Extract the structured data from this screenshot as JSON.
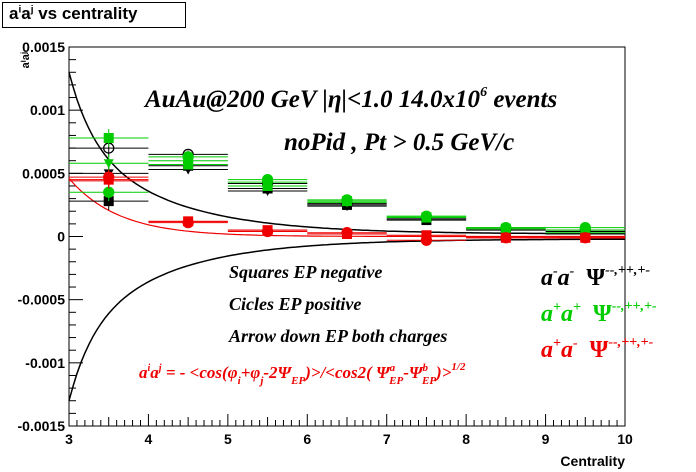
{
  "chart_data": {
    "type": "scatter",
    "title": {
      "base": "a",
      "sup1": "i",
      "mid": "a",
      "sup2": "j",
      "rest": " vs centrality"
    },
    "xlabel": "Centrality",
    "ylabel": "aⁱaʲ",
    "xlim": [
      3,
      10
    ],
    "ylim": [
      -0.0015,
      0.0015
    ],
    "xticks": [
      "3",
      "4",
      "5",
      "6",
      "7",
      "8",
      "9",
      "10"
    ],
    "yticks": [
      "-0.0015",
      "-0.001",
      "-0.0005",
      "0",
      "0.0005",
      "0.001",
      "0.0015"
    ],
    "yticks_values": [
      -0.0015,
      -0.001,
      -0.0005,
      0,
      0.0005,
      0.001,
      0.0015
    ],
    "grid": false,
    "annotations": {
      "event_line": {
        "main": "AuAu@200 GeV |η|<1.0 14.0x10",
        "sup": "6",
        "tail": " events"
      },
      "cut_line": "noPid , Pt > 0.5 GeV/c",
      "legend_text_1": "Squares EP negative",
      "legend_text_2": "Cicles EP positive",
      "legend_text_3": "Arrow down EP both charges",
      "formula": {
        "lhs_a1": "a",
        "lhs_s1": "i",
        "lhs_a2": "a",
        "lhs_s2": "j",
        "eq": " = - <cos(φ",
        "sub_i": "i",
        "plus": "+φ",
        "sub_j": "j",
        "minus": "-2Ψ",
        "sub_ep": "EP",
        "den": ")>/<cos2( Ψ",
        "sup_a": "a",
        "sub_ep2": "EP",
        "dash": "-Ψ",
        "sup_b": "b",
        "sub_ep3": "EP",
        "close": ")>",
        "power": "1/2"
      }
    },
    "legend": [
      {
        "a1": "a",
        "s1": "-",
        "a2": "a",
        "s2": "-",
        "psi": "Ψ",
        "sup": "--,++,+-",
        "color": "#000000"
      },
      {
        "a1": "a",
        "s1": "+",
        "a2": "a",
        "s2": "+",
        "psi": "Ψ",
        "sup": "--,++,+-",
        "color": "#00cc00"
      },
      {
        "a1": "a",
        "s1": "+",
        "a2": "a",
        "s2": "-",
        "psi": "Ψ",
        "sup": "--,++,+-",
        "color": "#ee0000"
      }
    ],
    "series": [
      {
        "name": "black",
        "color": "#000000",
        "x": [
          3.5,
          4.5,
          5.5,
          6.5,
          7.5,
          8.5,
          9.5
        ],
        "squares": [
          0.00028,
          0.00056,
          0.00038,
          0.00025,
          0.00013,
          5e-05,
          2e-05
        ],
        "circles": [
          0.0007,
          0.00065,
          0.00042,
          0.00026,
          0.00014,
          6e-05,
          5e-05
        ],
        "triangles": [
          0.0005,
          0.00053,
          0.00036,
          0.00024,
          0.00014,
          6e-05,
          4e-05
        ],
        "err": [
          7e-05,
          3e-05,
          2e-05,
          1.5e-05,
          1e-05,
          1e-05,
          1e-05
        ]
      },
      {
        "name": "green",
        "color": "#00cc00",
        "x": [
          3.5,
          4.5,
          5.5,
          6.5,
          7.5,
          8.5,
          9.5
        ],
        "squares": [
          0.00078,
          0.00057,
          0.0004,
          0.00028,
          0.00015,
          6e-05,
          3e-05
        ],
        "circles": [
          0.00035,
          0.00063,
          0.00045,
          0.00029,
          0.00016,
          7e-05,
          7e-05
        ],
        "triangles": [
          0.00058,
          0.0006,
          0.00043,
          0.00027,
          0.00016,
          7e-05,
          5e-05
        ],
        "err": [
          7e-05,
          3e-05,
          2e-05,
          1.5e-05,
          1e-05,
          1e-05,
          1e-05
        ]
      },
      {
        "name": "red",
        "color": "#ee0000",
        "x": [
          3.5,
          4.5,
          5.5,
          6.5,
          7.5,
          8.5,
          9.5
        ],
        "squares": [
          0.00045,
          0.00012,
          5e-05,
          2e-05,
          1e-05,
          -1e-05,
          -1e-05
        ],
        "circles": [
          0.00047,
          0.00011,
          4e-05,
          3e-05,
          -3e-05,
          -1e-05,
          -1e-05
        ],
        "triangles": [
          0.00044,
          0.00012,
          5e-05,
          2e-05,
          0.0,
          -1e-05,
          -1e-05
        ],
        "err": [
          6e-05,
          2e-05,
          1e-05,
          1e-05,
          1e-05,
          1e-05,
          1e-05
        ]
      }
    ],
    "curves": {
      "upper": {
        "a": 0.00078,
        "b": 2.5
      },
      "lower": {
        "a": 0.00078,
        "b": 2.5
      }
    }
  }
}
